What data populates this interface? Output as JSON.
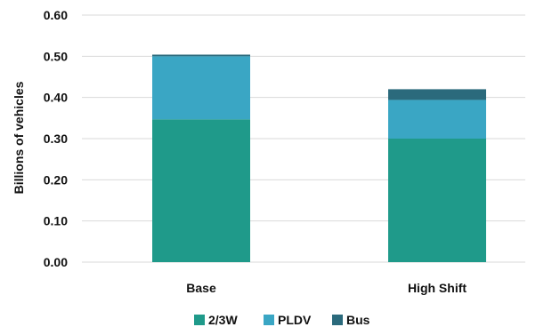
{
  "chart_data": {
    "type": "bar",
    "stacked": true,
    "title": "",
    "xlabel": "",
    "ylabel": "Billions of vehicles",
    "ylim": [
      0,
      0.6
    ],
    "yticks": [
      "0.00",
      "0.10",
      "0.20",
      "0.30",
      "0.40",
      "0.50",
      "0.60"
    ],
    "categories": [
      "Base",
      "High Shift"
    ],
    "series": [
      {
        "name": "2/3W",
        "color": "#1f9a8a",
        "values": [
          0.347,
          0.3
        ]
      },
      {
        "name": "PLDV",
        "color": "#3aa6c4",
        "values": [
          0.153,
          0.094
        ]
      },
      {
        "name": "Bus",
        "color": "#2b6a7c",
        "values": [
          0.004,
          0.026
        ]
      }
    ],
    "grid": true,
    "legend": "bottom"
  }
}
